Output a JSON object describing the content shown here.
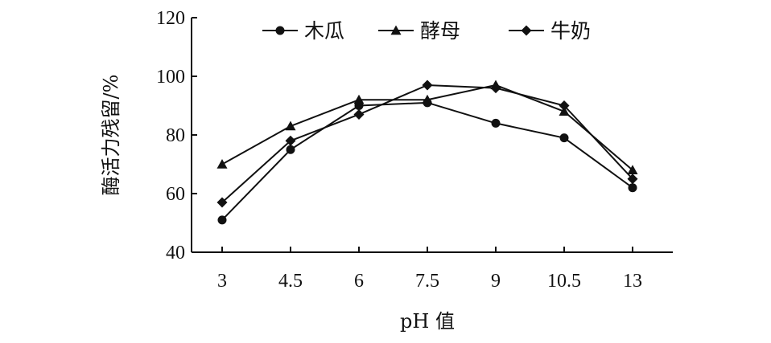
{
  "chart_data": {
    "type": "line",
    "title": "",
    "xlabel": "pH 值",
    "ylabel": "酶活力残留/%",
    "categories": [
      "3",
      "4.5",
      "6",
      "7.5",
      "9",
      "10.5",
      "13"
    ],
    "ylim": [
      40,
      120
    ],
    "yticks": [
      40,
      60,
      80,
      100,
      120
    ],
    "grid": false,
    "legend_position": "top",
    "series": [
      {
        "name": "木瓜",
        "marker": "circle",
        "values": [
          51,
          75,
          90,
          91,
          84,
          79,
          62
        ]
      },
      {
        "name": "酵母",
        "marker": "triangle",
        "values": [
          70,
          83,
          92,
          92,
          97,
          88,
          68
        ]
      },
      {
        "name": "牛奶",
        "marker": "diamond",
        "values": [
          57,
          78,
          87,
          97,
          96,
          90,
          65
        ]
      }
    ],
    "colors": {
      "line": "#111111",
      "axis": "#111111"
    }
  }
}
